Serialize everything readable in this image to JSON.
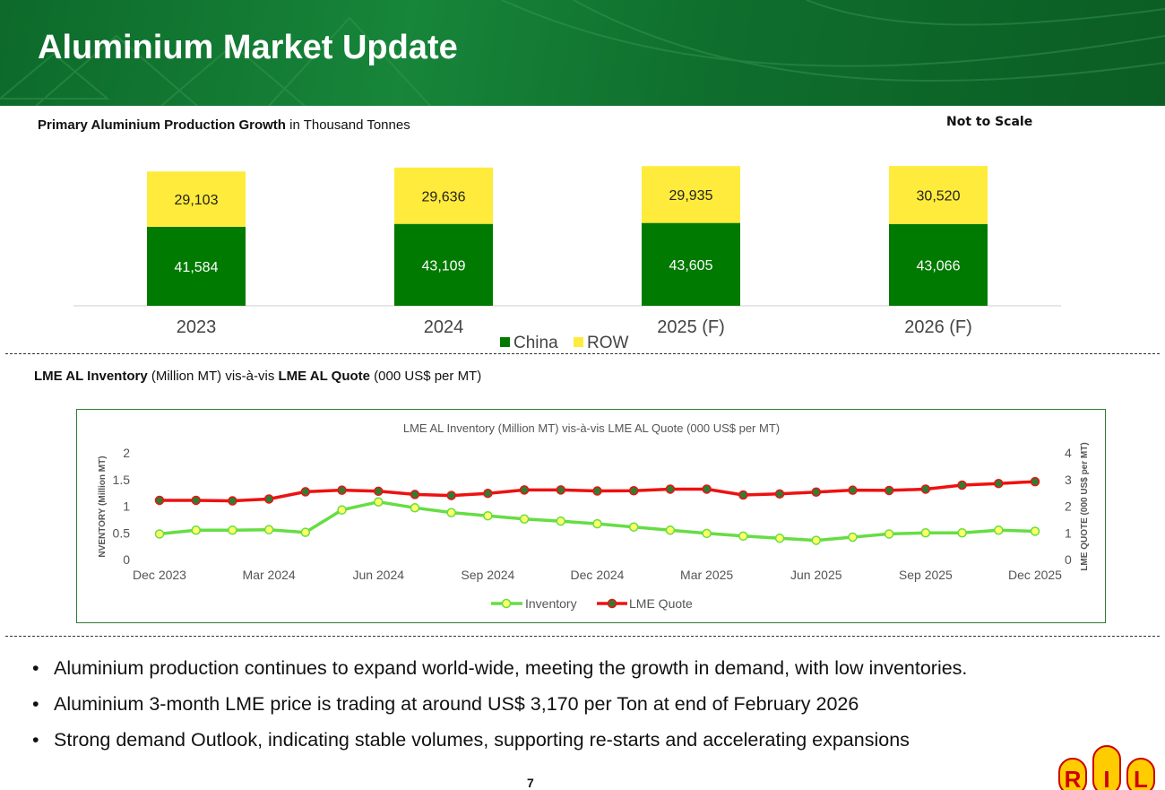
{
  "header": {
    "title": "Aluminium Market Update"
  },
  "section1": {
    "subtitle_bold": "Primary Aluminium Production Growth",
    "subtitle_rest": " in Thousand Tonnes",
    "note": "Not to Scale"
  },
  "section2": {
    "subtitle_bold1": "LME AL Inventory",
    "subtitle_mid": " (Million MT) vis-à-vis ",
    "subtitle_bold2": "LME AL Quote",
    "subtitle_rest": " (000 US$ per MT)"
  },
  "bullets": [
    "Aluminium production continues to expand world-wide, meeting the growth in demand, with low inventories.",
    "Aluminium 3-month LME price is trading at around US$ 3,170 per Ton at end of February 2026",
    "Strong demand Outlook, indicating stable volumes, supporting re-starts and accelerating expansions"
  ],
  "bullet_symbol": "•",
  "page_number": "7",
  "logo_letters": "RIL",
  "colors": {
    "china": "#007a00",
    "row": "#ffeb3b",
    "inventory": "#66dd44",
    "quote": "#ee1111",
    "header": "#137a33"
  },
  "chart_data": [
    {
      "type": "bar",
      "stacked": true,
      "categories": [
        "2023",
        "2024",
        "2025 (F)",
        "2026 (F)"
      ],
      "series": [
        {
          "name": "China",
          "values": [
            41584,
            43109,
            43605,
            43066
          ],
          "labels": [
            "41,584",
            "43,109",
            "43,605",
            "43,066"
          ]
        },
        {
          "name": "ROW",
          "values": [
            29103,
            29636,
            29935,
            30520
          ],
          "labels": [
            "29,103",
            "29,636",
            "29,935",
            "30,520"
          ]
        }
      ],
      "legend": "bottom"
    },
    {
      "type": "line",
      "title": "LME AL Inventory (Million MT) vis-à-vis LME AL Quote (000 US$ per MT)",
      "xlabel": "",
      "ylabel": "NVENTORY (Million MT)",
      "y2label": "LME QUOTE (000 US$ per MT)",
      "x_ticks": [
        "Dec 2023",
        "Mar 2024",
        "Jun 2024",
        "Sep 2024",
        "Dec 2024",
        "Mar 2025",
        "Jun 2025",
        "Sep 2025",
        "Dec 2025"
      ],
      "y_ticks": [
        "0",
        "0.5",
        "1",
        "1.5",
        "2"
      ],
      "y2_ticks": [
        "0",
        "1",
        "2",
        "3",
        "4"
      ],
      "ylim": [
        0,
        2
      ],
      "y2lim": [
        0,
        4
      ],
      "x_range_months": [
        0,
        24
      ],
      "series": [
        {
          "name": "Inventory",
          "axis": "left",
          "values": [
            0.48,
            0.55,
            0.55,
            0.56,
            0.51,
            0.93,
            1.08,
            0.97,
            0.88,
            0.82,
            0.76,
            0.72,
            0.67,
            0.61,
            0.55,
            0.49,
            0.44,
            0.4,
            0.36,
            0.42,
            0.48,
            0.5,
            0.5,
            0.55,
            0.53
          ]
        },
        {
          "name": "LME Quote",
          "axis": "right",
          "values": [
            2.22,
            2.22,
            2.2,
            2.27,
            2.54,
            2.6,
            2.56,
            2.44,
            2.4,
            2.48,
            2.61,
            2.61,
            2.57,
            2.58,
            2.64,
            2.64,
            2.42,
            2.46,
            2.53,
            2.6,
            2.59,
            2.64,
            2.79,
            2.85,
            2.92
          ]
        }
      ],
      "legend": "bottom",
      "grid": false
    }
  ]
}
